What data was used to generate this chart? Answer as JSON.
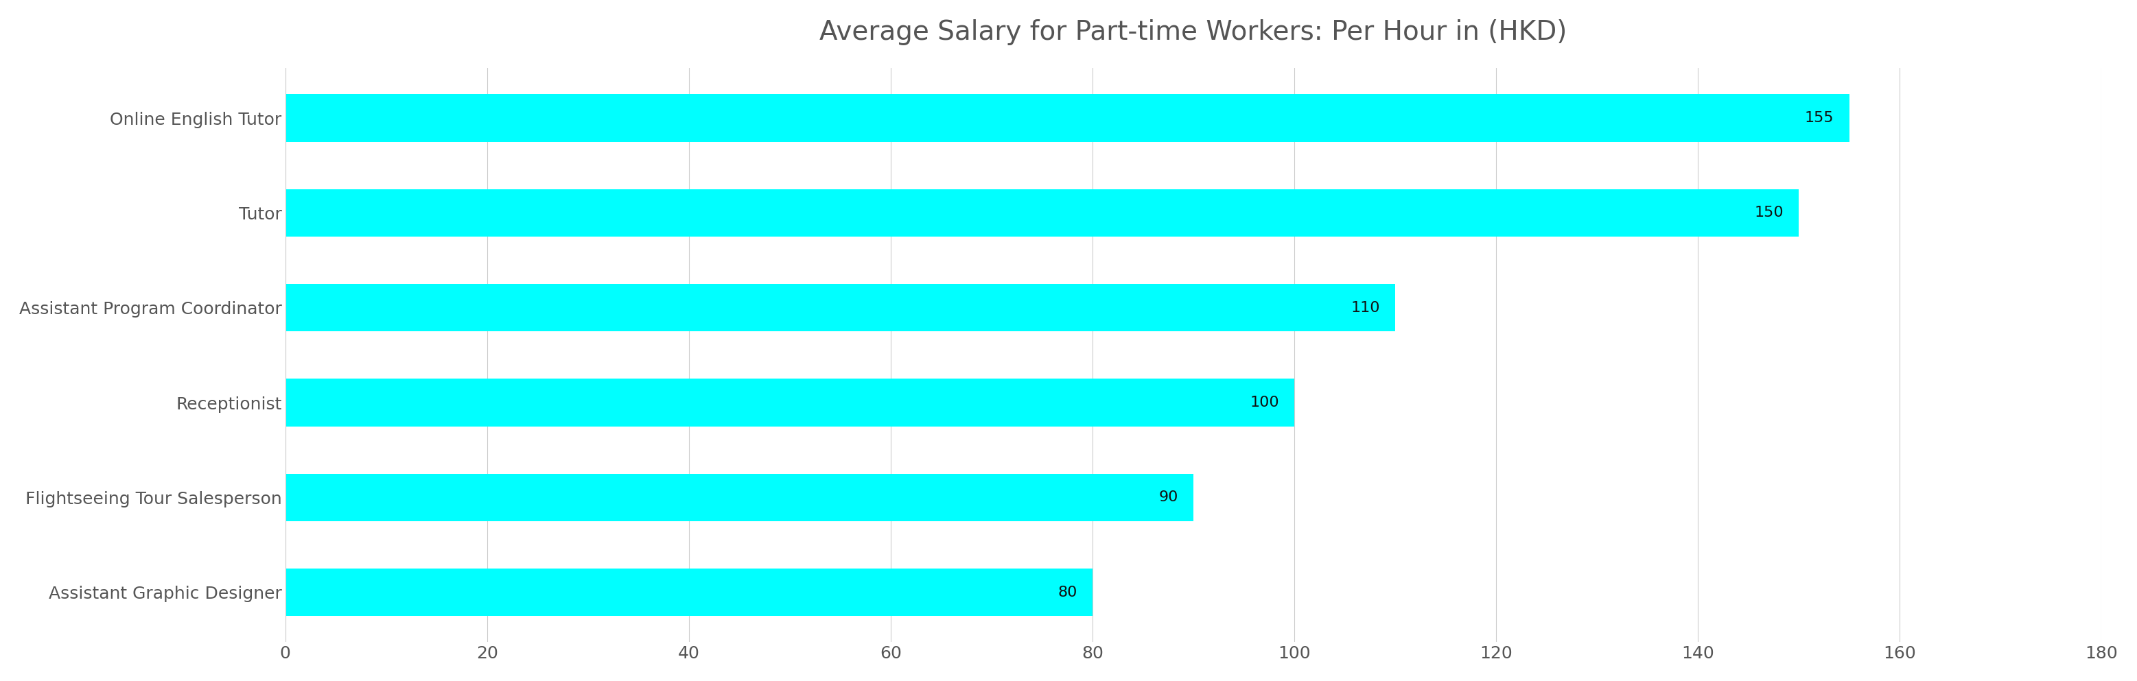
{
  "title": "Average Salary for Part-time Workers: Per Hour in (HKD)",
  "categories": [
    "Online English Tutor",
    "Tutor",
    "Assistant Program Coordinator",
    "Receptionist",
    "Flightseeing Tour Salesperson",
    "Assistant Graphic Designer"
  ],
  "values": [
    155,
    150,
    110,
    100,
    90,
    80
  ],
  "bar_color": "#00FFFF",
  "label_color": "#111111",
  "title_color": "#555555",
  "background_color": "#ffffff",
  "xlim": [
    0,
    180
  ],
  "xticks": [
    0,
    20,
    40,
    60,
    80,
    100,
    120,
    140,
    160,
    180
  ],
  "bar_height": 0.5,
  "title_fontsize": 28,
  "tick_fontsize": 18,
  "value_fontsize": 16
}
